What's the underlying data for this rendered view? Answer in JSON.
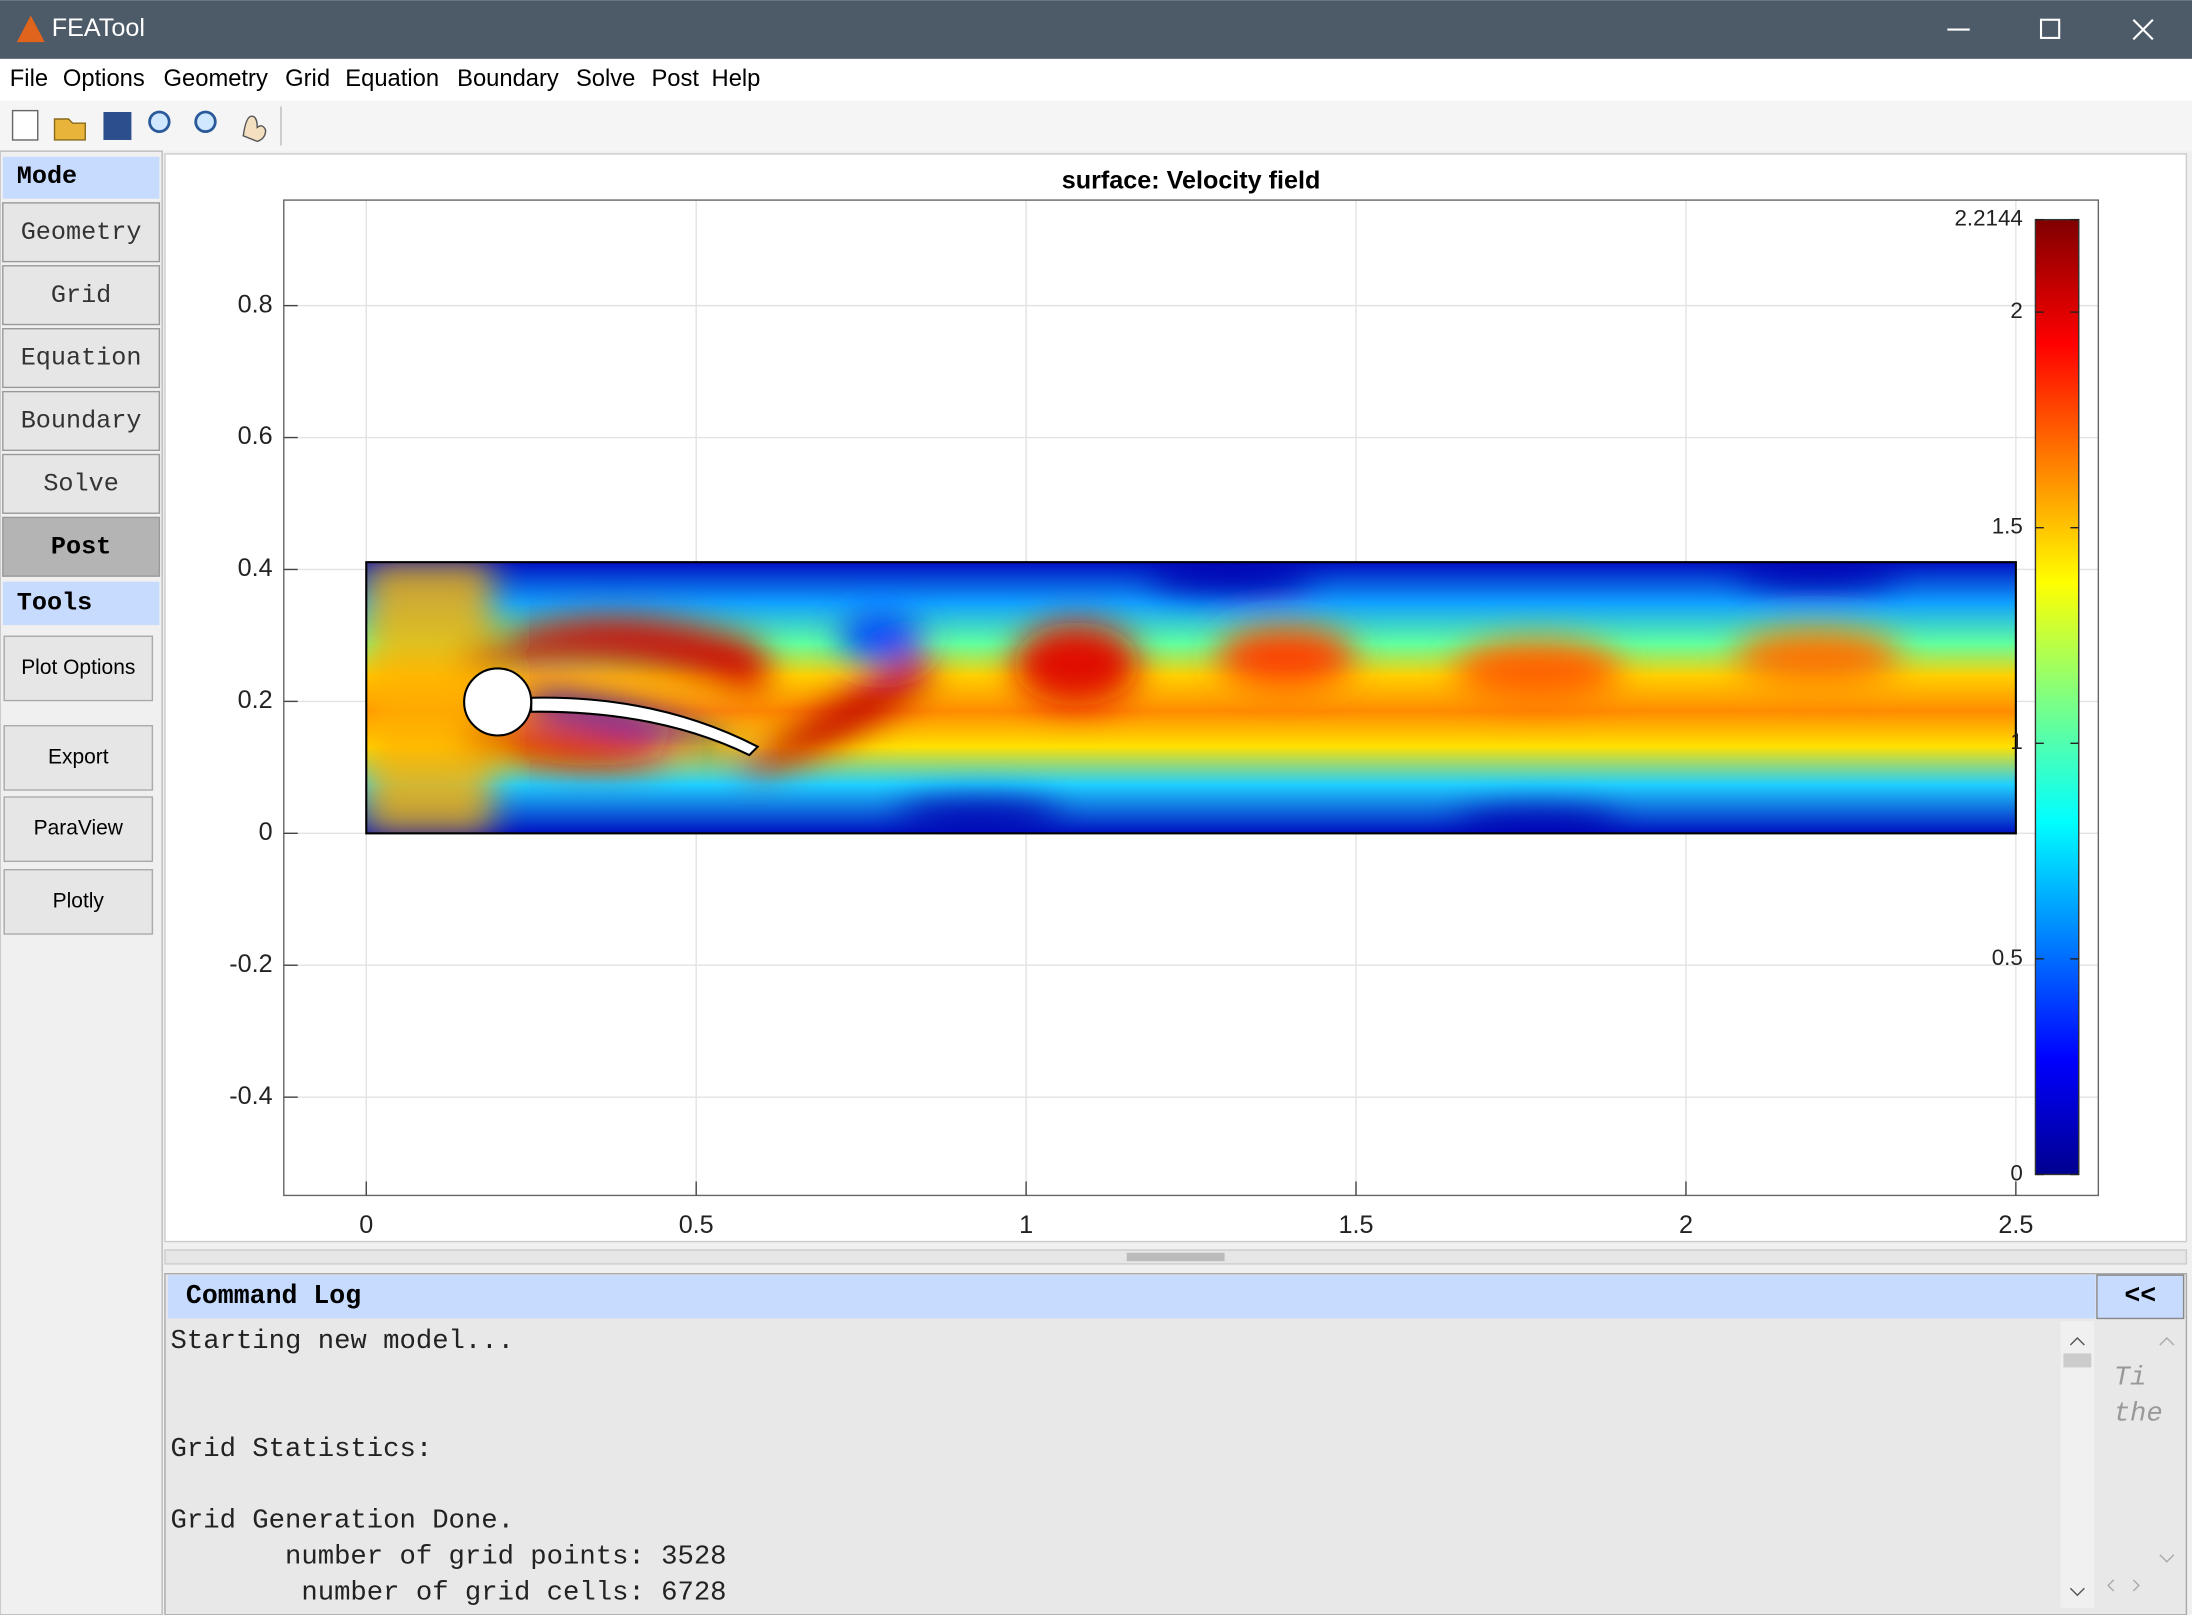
{
  "window": {
    "title": "FEATool"
  },
  "menu": [
    "File",
    "Options",
    "Geometry",
    "Grid",
    "Equation",
    "Boundary",
    "Solve",
    "Post",
    "Help"
  ],
  "mode": {
    "header": "Mode",
    "buttons": [
      "Geometry",
      "Grid",
      "Equation",
      "Boundary",
      "Solve",
      "Post"
    ]
  },
  "tools": {
    "header": "Tools",
    "buttons": [
      "Plot Options",
      "Export",
      "ParaView",
      "Plotly"
    ]
  },
  "chart_data": {
    "type": "surface",
    "title": "surface: Velocity field",
    "xlim": [
      -0.125,
      2.625
    ],
    "ylim": [
      -0.549,
      0.96
    ],
    "xticks": [
      0,
      0.5,
      1,
      1.5,
      2,
      2.5
    ],
    "yticks": [
      -0.4,
      -0.2,
      0,
      0.2,
      0.4,
      0.6,
      0.8
    ],
    "grid": true,
    "colorbar": {
      "lim": [
        0,
        2.2144
      ],
      "ticks": [
        0,
        0.5,
        1,
        1.5,
        2,
        2.2144
      ]
    }
  },
  "command_log": {
    "title": "Command Log",
    "button": "<<",
    "lines": [
      "Starting new model...",
      "Grid Statistics:",
      "Grid Generation Done.",
      "       number of grid points: 3528",
      "        number of grid cells: 6728"
    ],
    "tip": [
      "Ti",
      "the"
    ]
  }
}
